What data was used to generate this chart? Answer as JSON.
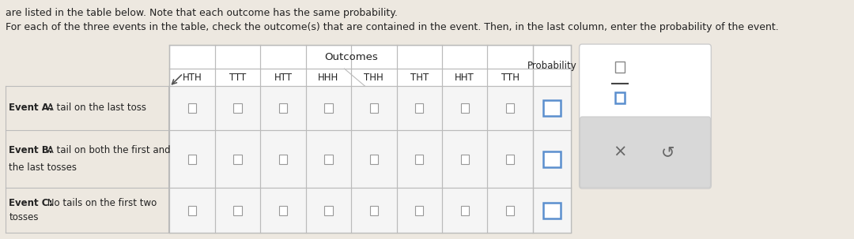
{
  "text_line1": "are listed in the table below. Note that each outcome has the same probability.",
  "text_line2": "For each of the three events in the table, check the outcome(s) that are contained in the event. Then, in the last column, enter the probability of the event.",
  "outcomes_label": "Outcomes",
  "probability_label": "Probability",
  "outcomes": [
    "HTH",
    "TTT",
    "HTT",
    "HHH",
    "THH",
    "THT",
    "HHT",
    "TTH"
  ],
  "event_A_bold": "Event A:",
  "event_A_rest": " A tail on the last toss",
  "event_B_bold": "Event B:",
  "event_B_rest": " A tail on both the first and",
  "event_B_line2": "the last tosses",
  "event_C_bold": "Event C:",
  "event_C_rest": " No tails on the first two",
  "event_C_line2": "tosses",
  "bg_color": "#ede8e0",
  "table_bg": "#ffffff",
  "cell_bg": "#f0f0f0",
  "border_color": "#bbbbbb",
  "text_color": "#222222",
  "prob_box_color": "#5b8fce",
  "frac_panel_bg": "#ffffff",
  "frac_panel_border": "#cccccc",
  "btn_panel_bg": "#d8d8d8",
  "btn_color": "#666666"
}
